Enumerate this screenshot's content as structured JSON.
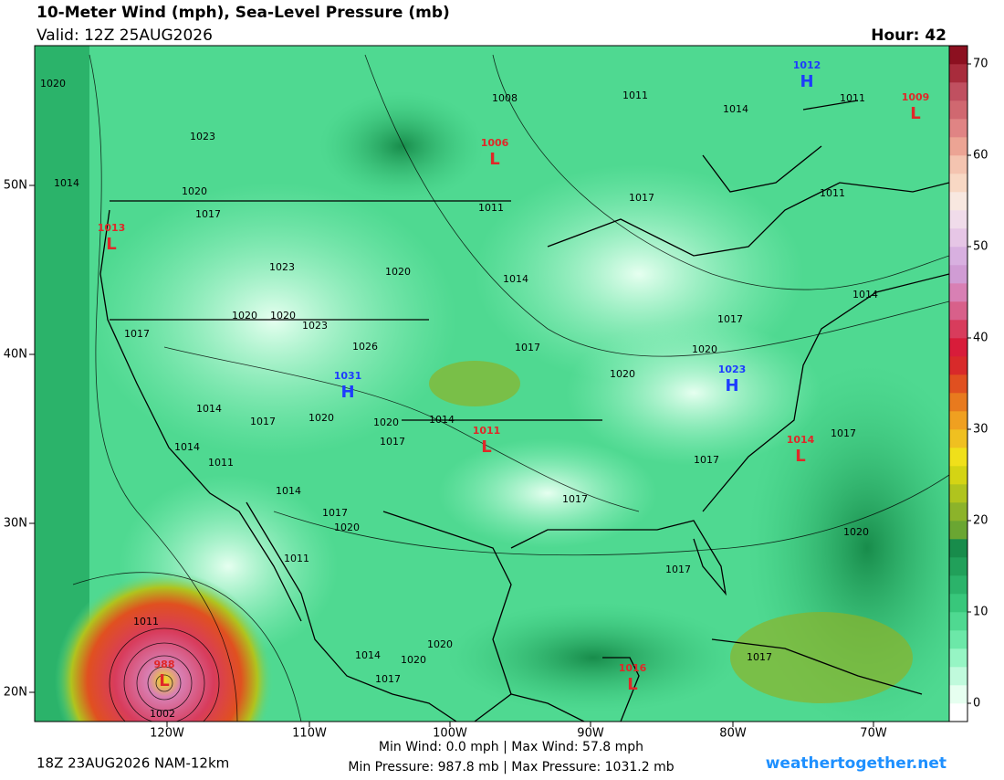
{
  "header": {
    "title": "10-Meter Wind (mph), Sea-Level Pressure (mb)",
    "valid": "Valid: 12Z 25AUG2026",
    "hour": "Hour: 42"
  },
  "map": {
    "lon_labels": [
      "120W",
      "110W",
      "100W",
      "90W",
      "80W",
      "70W"
    ],
    "lat_labels": [
      "50N",
      "40N",
      "30N",
      "20N"
    ],
    "pressure_centers": [
      {
        "symbol": "H",
        "value": 1012
      },
      {
        "symbol": "L",
        "value": 1009
      },
      {
        "symbol": "L",
        "value": 1006
      },
      {
        "symbol": "L",
        "value": 1013
      },
      {
        "symbol": "H",
        "value": 1031
      },
      {
        "symbol": "H",
        "value": 1023
      },
      {
        "symbol": "L",
        "value": 1011
      },
      {
        "symbol": "L",
        "value": 1014
      },
      {
        "symbol": "L",
        "value": 1016
      },
      {
        "symbol": "L",
        "value": 988
      }
    ],
    "isobar_labels": [
      1020,
      1008,
      1011,
      1014,
      1011,
      1023,
      1014,
      1020,
      1017,
      1017,
      1011,
      1011,
      1023,
      1020,
      1014,
      1014,
      1020,
      1020,
      1023,
      1017,
      1026,
      1017,
      1017,
      1020,
      1020,
      1014,
      1017,
      1020,
      1020,
      1014,
      1017,
      1017,
      1014,
      1011,
      1017,
      1014,
      1017,
      1017,
      1020,
      1020,
      1011,
      1017,
      1011,
      1020,
      1014,
      1020,
      1017,
      1017,
      1002
    ]
  },
  "colorbar": {
    "range": [
      -2,
      72
    ],
    "ticks": [
      0,
      10,
      20,
      30,
      40,
      50,
      60,
      70
    ],
    "colors": [
      "#ffffff",
      "#e6fff0",
      "#c0fadc",
      "#96f5c4",
      "#6ce8a8",
      "#4fd991",
      "#38c77b",
      "#2bb36a",
      "#21a05a",
      "#188c4b",
      "#6aa632",
      "#8cb32a",
      "#b0c41e",
      "#d4d414",
      "#f0e01a",
      "#f0c020",
      "#f0a020",
      "#e87a1e",
      "#e05020",
      "#d82a2a",
      "#d81c3a",
      "#d83c5c",
      "#d8608a",
      "#d880b4",
      "#d09cd4",
      "#d8b0e0",
      "#e6c6e6",
      "#f0dcea",
      "#f8e8e0",
      "#f8d8c4",
      "#f4c4b0",
      "#eca494",
      "#e08484",
      "#d06870",
      "#c05060",
      "#a82c3c",
      "#8c1020"
    ]
  },
  "footer": {
    "run": "18Z 23AUG2026 NAM-12km",
    "wind": "Min Wind:    0.0 mph | Max Wind:  57.8 mph",
    "pressure": "Min Pressure: 987.8 mb | Max Pressure: 1031.2 mb",
    "site": "weathertogether.net"
  }
}
